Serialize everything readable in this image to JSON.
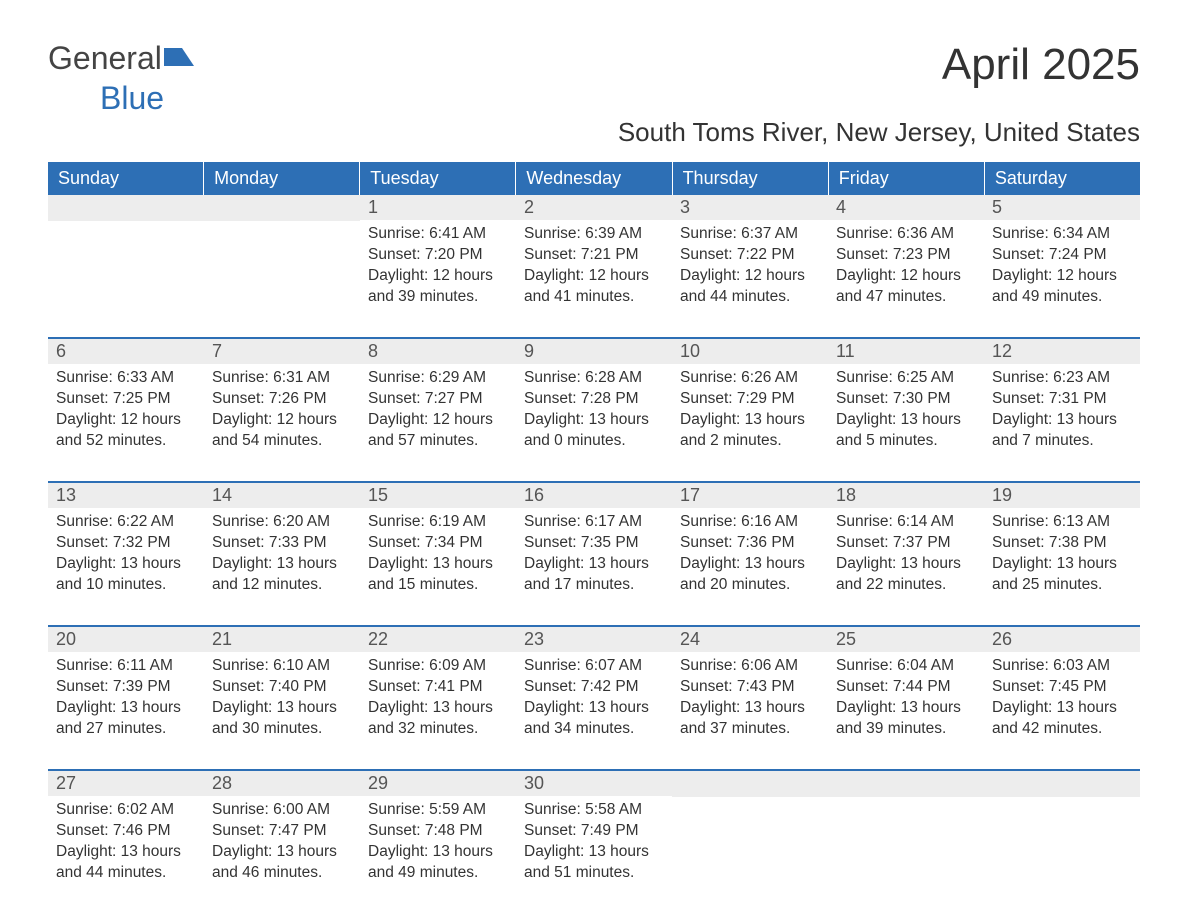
{
  "logo": {
    "text1": "General",
    "text2": "Blue"
  },
  "title": "April 2025",
  "subtitle": "South Toms River, New Jersey, United States",
  "colors": {
    "header_bg": "#2d6fb5",
    "header_text": "#ffffff",
    "daynum_bg": "#ededed",
    "body_text": "#333333",
    "page_bg": "#ffffff"
  },
  "typography": {
    "title_fontsize": 44,
    "subtitle_fontsize": 26,
    "weekday_fontsize": 18,
    "daynum_fontsize": 18,
    "body_fontsize": 15.5
  },
  "weekdays": [
    "Sunday",
    "Monday",
    "Tuesday",
    "Wednesday",
    "Thursday",
    "Friday",
    "Saturday"
  ],
  "weeks": [
    [
      null,
      null,
      {
        "n": "1",
        "sr": "6:41 AM",
        "ss": "7:20 PM",
        "dl": "12 hours and 39 minutes."
      },
      {
        "n": "2",
        "sr": "6:39 AM",
        "ss": "7:21 PM",
        "dl": "12 hours and 41 minutes."
      },
      {
        "n": "3",
        "sr": "6:37 AM",
        "ss": "7:22 PM",
        "dl": "12 hours and 44 minutes."
      },
      {
        "n": "4",
        "sr": "6:36 AM",
        "ss": "7:23 PM",
        "dl": "12 hours and 47 minutes."
      },
      {
        "n": "5",
        "sr": "6:34 AM",
        "ss": "7:24 PM",
        "dl": "12 hours and 49 minutes."
      }
    ],
    [
      {
        "n": "6",
        "sr": "6:33 AM",
        "ss": "7:25 PM",
        "dl": "12 hours and 52 minutes."
      },
      {
        "n": "7",
        "sr": "6:31 AM",
        "ss": "7:26 PM",
        "dl": "12 hours and 54 minutes."
      },
      {
        "n": "8",
        "sr": "6:29 AM",
        "ss": "7:27 PM",
        "dl": "12 hours and 57 minutes."
      },
      {
        "n": "9",
        "sr": "6:28 AM",
        "ss": "7:28 PM",
        "dl": "13 hours and 0 minutes."
      },
      {
        "n": "10",
        "sr": "6:26 AM",
        "ss": "7:29 PM",
        "dl": "13 hours and 2 minutes."
      },
      {
        "n": "11",
        "sr": "6:25 AM",
        "ss": "7:30 PM",
        "dl": "13 hours and 5 minutes."
      },
      {
        "n": "12",
        "sr": "6:23 AM",
        "ss": "7:31 PM",
        "dl": "13 hours and 7 minutes."
      }
    ],
    [
      {
        "n": "13",
        "sr": "6:22 AM",
        "ss": "7:32 PM",
        "dl": "13 hours and 10 minutes."
      },
      {
        "n": "14",
        "sr": "6:20 AM",
        "ss": "7:33 PM",
        "dl": "13 hours and 12 minutes."
      },
      {
        "n": "15",
        "sr": "6:19 AM",
        "ss": "7:34 PM",
        "dl": "13 hours and 15 minutes."
      },
      {
        "n": "16",
        "sr": "6:17 AM",
        "ss": "7:35 PM",
        "dl": "13 hours and 17 minutes."
      },
      {
        "n": "17",
        "sr": "6:16 AM",
        "ss": "7:36 PM",
        "dl": "13 hours and 20 minutes."
      },
      {
        "n": "18",
        "sr": "6:14 AM",
        "ss": "7:37 PM",
        "dl": "13 hours and 22 minutes."
      },
      {
        "n": "19",
        "sr": "6:13 AM",
        "ss": "7:38 PM",
        "dl": "13 hours and 25 minutes."
      }
    ],
    [
      {
        "n": "20",
        "sr": "6:11 AM",
        "ss": "7:39 PM",
        "dl": "13 hours and 27 minutes."
      },
      {
        "n": "21",
        "sr": "6:10 AM",
        "ss": "7:40 PM",
        "dl": "13 hours and 30 minutes."
      },
      {
        "n": "22",
        "sr": "6:09 AM",
        "ss": "7:41 PM",
        "dl": "13 hours and 32 minutes."
      },
      {
        "n": "23",
        "sr": "6:07 AM",
        "ss": "7:42 PM",
        "dl": "13 hours and 34 minutes."
      },
      {
        "n": "24",
        "sr": "6:06 AM",
        "ss": "7:43 PM",
        "dl": "13 hours and 37 minutes."
      },
      {
        "n": "25",
        "sr": "6:04 AM",
        "ss": "7:44 PM",
        "dl": "13 hours and 39 minutes."
      },
      {
        "n": "26",
        "sr": "6:03 AM",
        "ss": "7:45 PM",
        "dl": "13 hours and 42 minutes."
      }
    ],
    [
      {
        "n": "27",
        "sr": "6:02 AM",
        "ss": "7:46 PM",
        "dl": "13 hours and 44 minutes."
      },
      {
        "n": "28",
        "sr": "6:00 AM",
        "ss": "7:47 PM",
        "dl": "13 hours and 46 minutes."
      },
      {
        "n": "29",
        "sr": "5:59 AM",
        "ss": "7:48 PM",
        "dl": "13 hours and 49 minutes."
      },
      {
        "n": "30",
        "sr": "5:58 AM",
        "ss": "7:49 PM",
        "dl": "13 hours and 51 minutes."
      },
      null,
      null,
      null
    ]
  ],
  "labels": {
    "sunrise": "Sunrise: ",
    "sunset": "Sunset: ",
    "daylight": "Daylight: "
  }
}
